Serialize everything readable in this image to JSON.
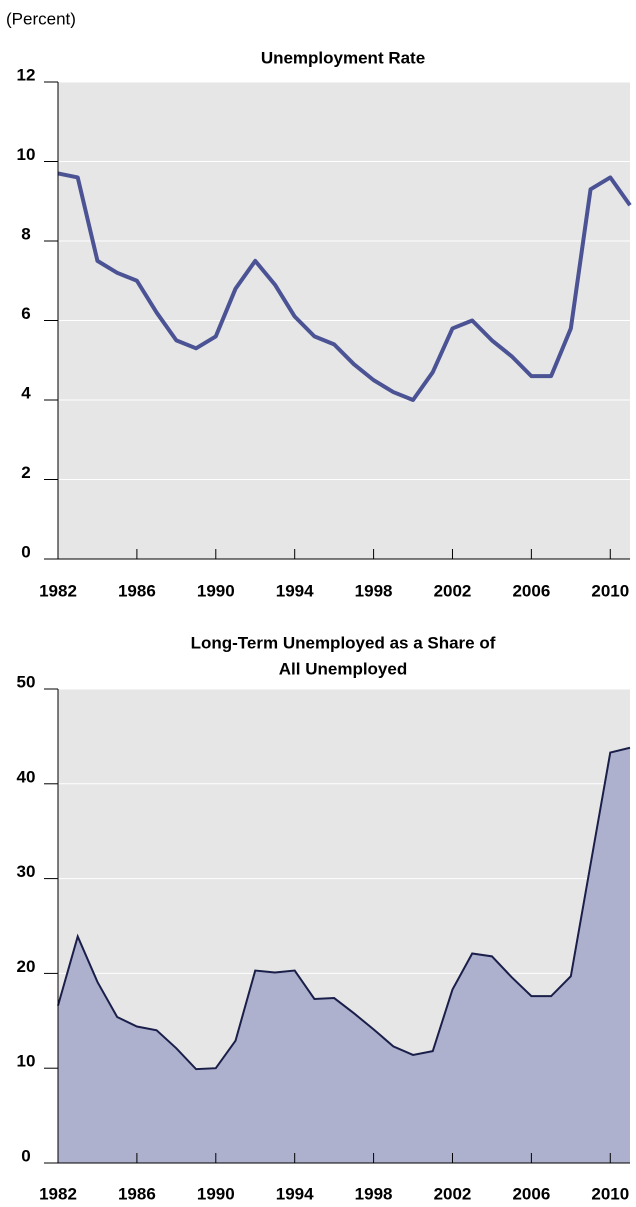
{
  "unit_note": "(Percent)",
  "chart_data": [
    {
      "type": "line",
      "title": [
        "Unemployment Rate"
      ],
      "color": "#4b5394",
      "grid": true,
      "x": [
        1982,
        1983,
        1984,
        1985,
        1986,
        1987,
        1988,
        1989,
        1990,
        1991,
        1992,
        1993,
        1994,
        1995,
        1996,
        1997,
        1998,
        1999,
        2000,
        2001,
        2002,
        2003,
        2004,
        2005,
        2006,
        2007,
        2008,
        2009,
        2010,
        2011
      ],
      "values": [
        9.7,
        9.6,
        7.5,
        7.2,
        7.0,
        6.2,
        5.5,
        5.3,
        5.6,
        6.8,
        7.5,
        6.9,
        6.1,
        5.6,
        5.4,
        4.9,
        4.5,
        4.2,
        4.0,
        4.7,
        5.8,
        6.0,
        5.5,
        5.1,
        4.6,
        4.6,
        5.8,
        9.3,
        9.6,
        8.9
      ],
      "xlim": [
        1982,
        2011
      ],
      "xticks": [
        1982,
        1986,
        1990,
        1994,
        1998,
        2002,
        2006,
        2010
      ],
      "ylim": [
        0,
        12
      ],
      "yticks": [
        0,
        2,
        4,
        6,
        8,
        10,
        12
      ]
    },
    {
      "type": "area",
      "title": [
        "Long-Term Unemployed as a Share of",
        "All Unemployed"
      ],
      "color": "#aeb1cd",
      "grid": true,
      "x": [
        1982,
        1983,
        1984,
        1985,
        1986,
        1987,
        1988,
        1989,
        1990,
        1991,
        1992,
        1993,
        1994,
        1995,
        1996,
        1997,
        1998,
        1999,
        2000,
        2001,
        2002,
        2003,
        2004,
        2005,
        2006,
        2007,
        2008,
        2009,
        2010,
        2011
      ],
      "values": [
        16.6,
        23.9,
        19.1,
        15.4,
        14.4,
        14.0,
        12.1,
        9.9,
        10.0,
        12.9,
        20.3,
        20.1,
        20.3,
        17.3,
        17.4,
        15.8,
        14.1,
        12.3,
        11.4,
        11.8,
        18.3,
        22.1,
        21.8,
        19.6,
        17.6,
        17.6,
        19.7,
        31.5,
        43.3,
        43.8
      ],
      "xlim": [
        1982,
        2011
      ],
      "xticks": [
        1982,
        1986,
        1990,
        1994,
        1998,
        2002,
        2006,
        2010
      ],
      "ylim": [
        0,
        50
      ],
      "yticks": [
        0,
        10,
        20,
        30,
        40,
        50
      ]
    }
  ]
}
